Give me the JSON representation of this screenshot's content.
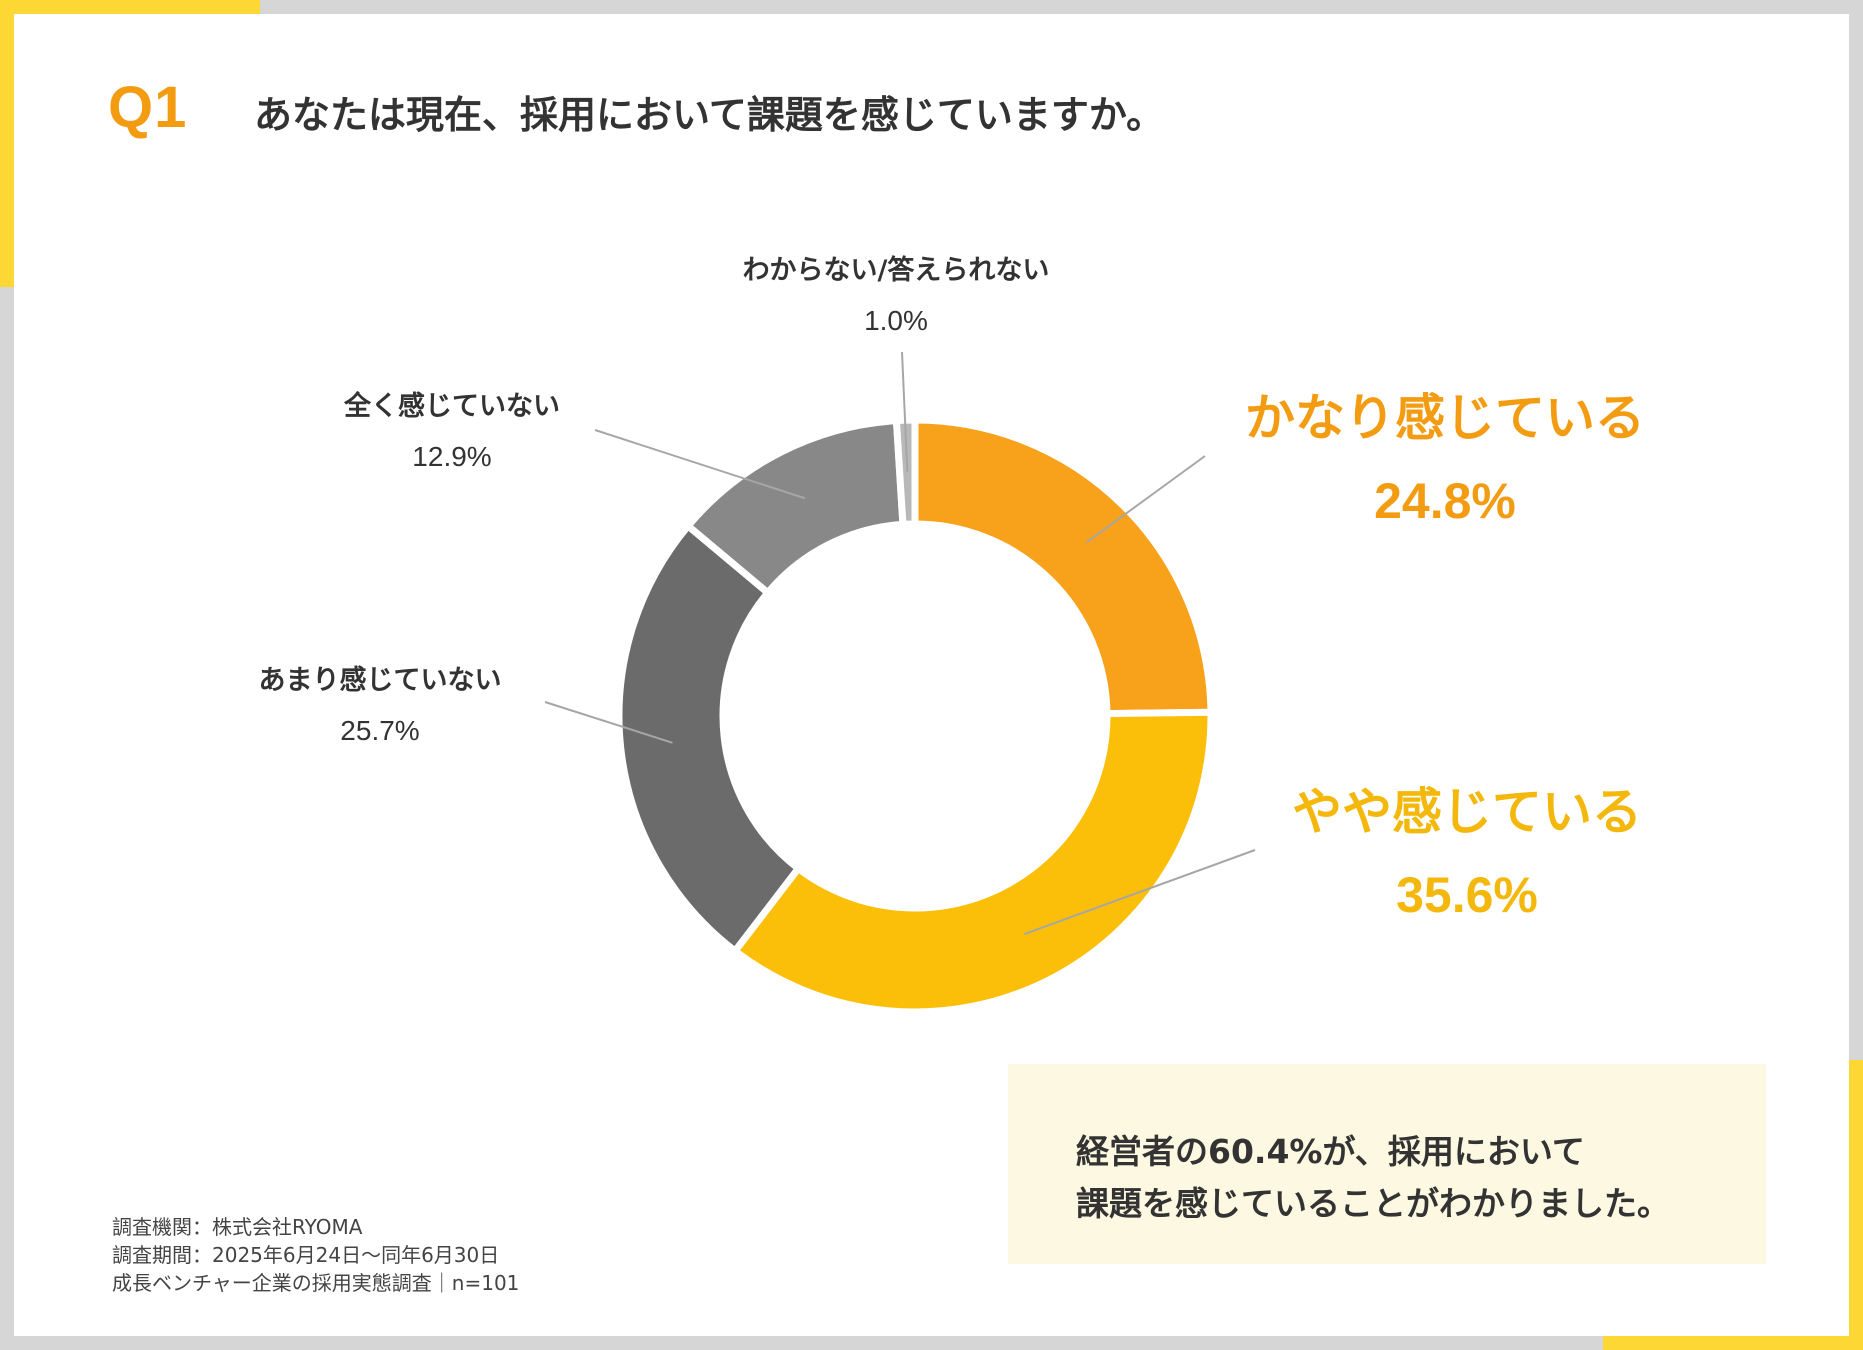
{
  "header": {
    "q_label": "Q1",
    "question": "あなたは現在、採用において課題を感じていますか。"
  },
  "chart_data": {
    "type": "donut",
    "title": "あなたは現在、採用において課題を感じていますか。",
    "series": [
      {
        "label": "かなり感じている",
        "value": 24.8,
        "value_label": "24.8%",
        "color": "#f8a11b"
      },
      {
        "label": "やや感じている",
        "value": 35.6,
        "value_label": "35.6%",
        "color": "#fbbf0a"
      },
      {
        "label": "あまり感じていない",
        "value": 25.7,
        "value_label": "25.7%",
        "color": "#6b6b6b"
      },
      {
        "label": "全く感じていない",
        "value": 12.9,
        "value_label": "12.9%",
        "color": "#888888"
      },
      {
        "label": "わからない/答えられない",
        "value": 1.0,
        "value_label": "1.0%",
        "color": "#b8b8b8"
      }
    ]
  },
  "summary": {
    "line1": "経営者の60.4%が、採用において",
    "line2": "課題を感じていることがわかりました。"
  },
  "source": {
    "line1": "調査機関：株式会社RYOMA",
    "line2": "調査期間：2025年6月24日～同年6月30日",
    "line3": "成長ベンチャー企業の採用実態調査｜n=101"
  },
  "colors": {
    "accent_orange": "#f39c12",
    "accent_yellow": "#fdd834",
    "summary_bg": "#fdf8e1"
  }
}
